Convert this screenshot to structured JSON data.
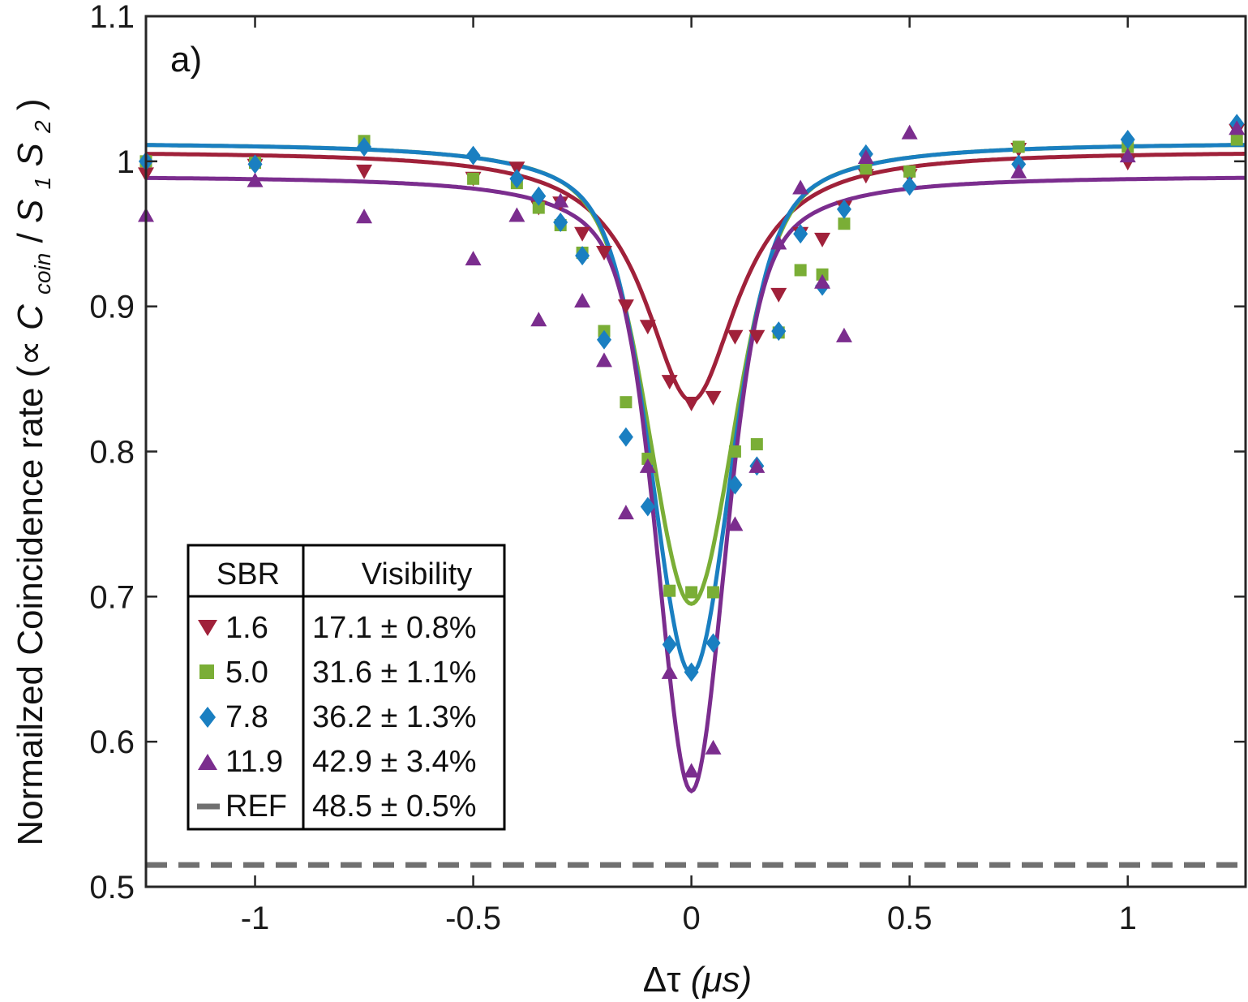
{
  "chart_data": {
    "type": "scatter",
    "panel_label": "a)",
    "xlabel_main": "Δτ",
    "xlabel_unit": "(μs)",
    "ylabel_main": "Normailzed Coincidence rate (∝",
    "ylabel_C": "C",
    "ylabel_coin": "coin",
    "ylabel_slash": "/",
    "ylabel_S": "S",
    "ylabel_1": "1",
    "ylabel_2": "2",
    "ylabel_close": ")",
    "xlim": [
      -1.25,
      1.27
    ],
    "ylim": [
      0.5,
      1.1
    ],
    "xticks": [
      -1,
      -0.5,
      0,
      0.5,
      1
    ],
    "xtick_labels": [
      "-1",
      "-0.5",
      "0",
      "0.5",
      "1"
    ],
    "yticks": [
      0.5,
      0.6,
      0.7,
      0.8,
      0.9,
      1.0,
      1.1
    ],
    "ytick_labels": [
      "0.5",
      "0.6",
      "0.7",
      "0.8",
      "0.9",
      "1",
      "1.1"
    ],
    "legend": {
      "header_sbr": "SBR",
      "header_visibility": "Visibility",
      "rows": [
        {
          "sbr": "1.6",
          "visibility": "17.1 ± 0.8%"
        },
        {
          "sbr": "5.0",
          "visibility": "31.6 ± 1.1%"
        },
        {
          "sbr": "7.8",
          "visibility": "36.2 ± 1.3%"
        },
        {
          "sbr": "11.9",
          "visibility": "42.9 ± 3.4%"
        },
        {
          "sbr": "REF",
          "visibility": "48.5 ± 0.5%"
        }
      ]
    },
    "reference_line": {
      "name": "REF",
      "y": 0.515,
      "color": "#707070"
    },
    "series": [
      {
        "name": "1.6",
        "marker": "triangle-down",
        "color": "#A0213A",
        "fit": {
          "baseline": 1.007,
          "amplitude": 0.172,
          "width": 0.13,
          "shape": "lorentzian"
        },
        "points": [
          [
            -1.25,
            0.991
          ],
          [
            -1.0,
            0.997
          ],
          [
            -0.75,
            0.993
          ],
          [
            -0.5,
            0.988
          ],
          [
            -0.4,
            0.995
          ],
          [
            -0.35,
            0.968
          ],
          [
            -0.3,
            0.971
          ],
          [
            -0.25,
            0.95
          ],
          [
            -0.2,
            0.937
          ],
          [
            -0.15,
            0.9
          ],
          [
            -0.1,
            0.886
          ],
          [
            -0.05,
            0.848
          ],
          [
            0.0,
            0.833
          ],
          [
            0.05,
            0.837
          ],
          [
            0.1,
            0.879
          ],
          [
            0.15,
            0.879
          ],
          [
            0.2,
            0.908
          ],
          [
            0.25,
            0.95
          ],
          [
            0.3,
            0.946
          ],
          [
            0.35,
            0.968
          ],
          [
            0.4,
            0.99
          ],
          [
            0.5,
            0.99
          ],
          [
            0.75,
            1.008
          ],
          [
            1.0,
            0.999
          ],
          [
            1.25,
            1.021
          ]
        ]
      },
      {
        "name": "5.0",
        "marker": "square",
        "color": "#7AAE36",
        "fit": {
          "baseline": 1.013,
          "amplitude": 0.318,
          "width": 0.14,
          "shape": "gaussian-lorentzian"
        },
        "points": [
          [
            -1.25,
            1.0
          ],
          [
            -1.0,
            0.999
          ],
          [
            -0.75,
            1.014
          ],
          [
            -0.5,
            0.988
          ],
          [
            -0.4,
            0.985
          ],
          [
            -0.35,
            0.968
          ],
          [
            -0.3,
            0.956
          ],
          [
            -0.25,
            0.937
          ],
          [
            -0.2,
            0.883
          ],
          [
            -0.15,
            0.834
          ],
          [
            -0.1,
            0.795
          ],
          [
            -0.05,
            0.704
          ],
          [
            0.0,
            0.703
          ],
          [
            0.05,
            0.703
          ],
          [
            0.1,
            0.8
          ],
          [
            0.15,
            0.805
          ],
          [
            0.2,
            0.882
          ],
          [
            0.25,
            0.925
          ],
          [
            0.3,
            0.922
          ],
          [
            0.35,
            0.957
          ],
          [
            0.4,
            0.995
          ],
          [
            0.5,
            0.993
          ],
          [
            0.75,
            1.01
          ],
          [
            1.0,
            1.01
          ],
          [
            1.25,
            1.015
          ]
        ]
      },
      {
        "name": "7.8",
        "marker": "diamond",
        "color": "#1A7FC1",
        "fit": {
          "baseline": 1.013,
          "amplitude": 0.366,
          "width": 0.13,
          "shape": "gaussian-lorentzian"
        },
        "points": [
          [
            -1.25,
            1.0
          ],
          [
            -1.0,
            0.998
          ],
          [
            -0.75,
            1.01
          ],
          [
            -0.5,
            1.004
          ],
          [
            -0.4,
            0.988
          ],
          [
            -0.35,
            0.976
          ],
          [
            -0.3,
            0.958
          ],
          [
            -0.25,
            0.935
          ],
          [
            -0.2,
            0.877
          ],
          [
            -0.15,
            0.81
          ],
          [
            -0.1,
            0.762
          ],
          [
            -0.05,
            0.667
          ],
          [
            0.0,
            0.648
          ],
          [
            0.05,
            0.668
          ],
          [
            0.1,
            0.777
          ],
          [
            0.15,
            0.79
          ],
          [
            0.2,
            0.883
          ],
          [
            0.25,
            0.95
          ],
          [
            0.3,
            0.914
          ],
          [
            0.35,
            0.967
          ],
          [
            0.4,
            1.005
          ],
          [
            0.5,
            0.983
          ],
          [
            0.75,
            0.998
          ],
          [
            1.0,
            1.015
          ],
          [
            1.25,
            1.026
          ]
        ]
      },
      {
        "name": "11.9",
        "marker": "triangle-up",
        "color": "#7B2D8E",
        "fit": {
          "baseline": 0.99,
          "amplitude": 0.424,
          "width": 0.11,
          "shape": "gaussian-lorentzian"
        },
        "points": [
          [
            -1.25,
            0.963
          ],
          [
            -1.0,
            0.987
          ],
          [
            -0.75,
            0.962
          ],
          [
            -0.5,
            0.933
          ],
          [
            -0.4,
            0.963
          ],
          [
            -0.35,
            0.891
          ],
          [
            -0.3,
            0.973
          ],
          [
            -0.25,
            0.904
          ],
          [
            -0.2,
            0.863
          ],
          [
            -0.15,
            0.758
          ],
          [
            -0.1,
            0.79
          ],
          [
            -0.05,
            0.648
          ],
          [
            0.0,
            0.58
          ],
          [
            0.05,
            0.596
          ],
          [
            0.1,
            0.75
          ],
          [
            0.15,
            0.79
          ],
          [
            0.2,
            0.944
          ],
          [
            0.25,
            0.982
          ],
          [
            0.3,
            0.917
          ],
          [
            0.35,
            0.88
          ],
          [
            0.4,
            1.003
          ],
          [
            0.5,
            1.02
          ],
          [
            0.75,
            0.993
          ],
          [
            1.0,
            1.004
          ],
          [
            1.25,
            1.023
          ]
        ]
      }
    ]
  }
}
